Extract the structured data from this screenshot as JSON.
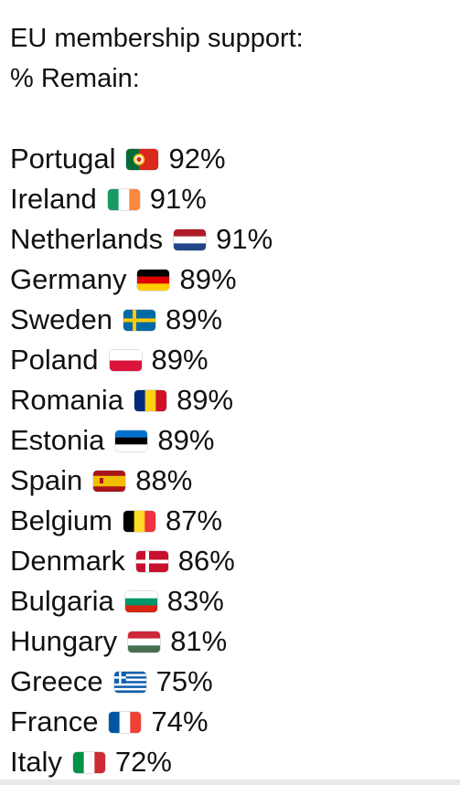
{
  "heading": {
    "line1": "EU membership support:",
    "line2": "% Remain:"
  },
  "rows": [
    {
      "country": "Portugal",
      "flag": "portugal-flag",
      "pct": "92%",
      "colors": [
        "#046a38",
        "#da291c",
        "#ffcc29"
      ]
    },
    {
      "country": "Ireland",
      "flag": "ireland-flag",
      "pct": "91%",
      "colors": [
        "#169b62",
        "#ffffff",
        "#ff883e"
      ]
    },
    {
      "country": "Netherlands",
      "flag": "netherlands-flag",
      "pct": "91%",
      "colors": [
        "#ae1c28",
        "#ffffff",
        "#21468b"
      ]
    },
    {
      "country": "Germany",
      "flag": "germany-flag",
      "pct": "89%",
      "colors": [
        "#000000",
        "#dd0000",
        "#ffce00"
      ]
    },
    {
      "country": "Sweden",
      "flag": "sweden-flag",
      "pct": "89%",
      "colors": [
        "#006aa7",
        "#fecc00"
      ]
    },
    {
      "country": "Poland",
      "flag": "poland-flag",
      "pct": "89%",
      "colors": [
        "#ffffff",
        "#dc143c"
      ]
    },
    {
      "country": "Romania",
      "flag": "romania-flag",
      "pct": "89%",
      "colors": [
        "#002b7f",
        "#fcd116",
        "#ce1126"
      ]
    },
    {
      "country": "Estonia",
      "flag": "estonia-flag",
      "pct": "89%",
      "colors": [
        "#0072ce",
        "#000000",
        "#ffffff"
      ]
    },
    {
      "country": "Spain",
      "flag": "spain-flag",
      "pct": "88%",
      "colors": [
        "#aa151b",
        "#f1bf00"
      ]
    },
    {
      "country": "Belgium",
      "flag": "belgium-flag",
      "pct": "87%",
      "colors": [
        "#000000",
        "#fdda24",
        "#ef3340"
      ]
    },
    {
      "country": "Denmark",
      "flag": "denmark-flag",
      "pct": "86%",
      "colors": [
        "#c8102e",
        "#ffffff"
      ]
    },
    {
      "country": "Bulgaria",
      "flag": "bulgaria-flag",
      "pct": "83%",
      "colors": [
        "#ffffff",
        "#00966e",
        "#d62612"
      ]
    },
    {
      "country": "Hungary",
      "flag": "hungary-flag",
      "pct": "81%",
      "colors": [
        "#ce2939",
        "#ffffff",
        "#477050"
      ]
    },
    {
      "country": "Greece",
      "flag": "greece-flag",
      "pct": "75%",
      "colors": [
        "#0d5eaf",
        "#ffffff"
      ]
    },
    {
      "country": "France",
      "flag": "france-flag",
      "pct": "74%",
      "colors": [
        "#0055a4",
        "#ffffff",
        "#ef4135"
      ]
    },
    {
      "country": "Italy",
      "flag": "italy-flag",
      "pct": "72%",
      "colors": [
        "#009246",
        "#ffffff",
        "#ce2b37"
      ]
    }
  ]
}
